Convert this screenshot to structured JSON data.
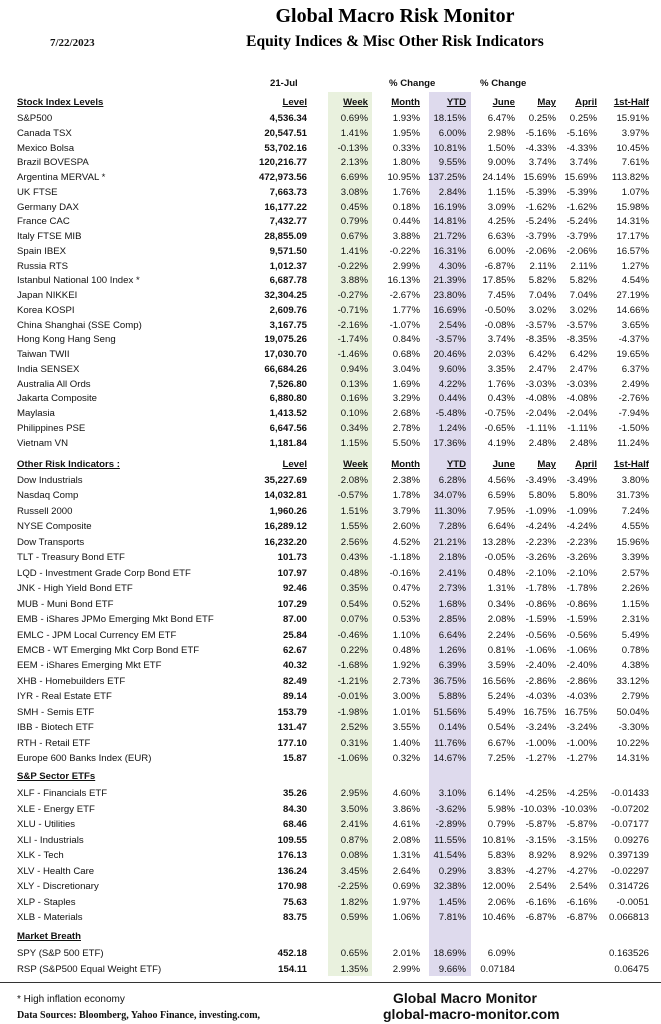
{
  "header": {
    "title": "Global Macro Risk Monitor",
    "subtitle": "Equity Indices & Misc Other Risk Indicators",
    "date": "7/22/2023",
    "as_of": "21-Jul",
    "pct_change_1": "% Change",
    "pct_change_2": "% Change"
  },
  "columns": [
    "Level",
    "Week",
    "Month",
    "YTD",
    "June",
    "May",
    "April",
    "1st-Half"
  ],
  "colors": {
    "week_band": "#e9f1de",
    "ytd_band": "#dedaed"
  },
  "sections": [
    {
      "title": "Stock Index Levels",
      "show_headers": true,
      "rows": [
        [
          "S&P500",
          "4,536.34",
          "0.69%",
          "1.93%",
          "18.15%",
          "6.47%",
          "0.25%",
          "0.25%",
          "15.91%"
        ],
        [
          "Canada TSX",
          "20,547.51",
          "1.41%",
          "1.95%",
          "6.00%",
          "2.98%",
          "-5.16%",
          "-5.16%",
          "3.97%"
        ],
        [
          "Mexico Bolsa",
          "53,702.16",
          "-0.13%",
          "0.33%",
          "10.81%",
          "1.50%",
          "-4.33%",
          "-4.33%",
          "10.45%"
        ],
        [
          "Brazil BOVESPA",
          "120,216.77",
          "2.13%",
          "1.80%",
          "9.55%",
          "9.00%",
          "3.74%",
          "3.74%",
          "7.61%"
        ],
        [
          "Argentina MERVAL *",
          "472,973.56",
          "6.69%",
          "10.95%",
          "137.25%",
          "24.14%",
          "15.69%",
          "15.69%",
          "113.82%"
        ],
        [
          "UK FTSE",
          "7,663.73",
          "3.08%",
          "1.76%",
          "2.84%",
          "1.15%",
          "-5.39%",
          "-5.39%",
          "1.07%"
        ],
        [
          "Germany DAX",
          "16,177.22",
          "0.45%",
          "0.18%",
          "16.19%",
          "3.09%",
          "-1.62%",
          "-1.62%",
          "15.98%"
        ],
        [
          "France CAC",
          "7,432.77",
          "0.79%",
          "0.44%",
          "14.81%",
          "4.25%",
          "-5.24%",
          "-5.24%",
          "14.31%"
        ],
        [
          "Italy FTSE MIB",
          "28,855.09",
          "0.67%",
          "3.88%",
          "21.72%",
          "6.63%",
          "-3.79%",
          "-3.79%",
          "17.17%"
        ],
        [
          "Spain IBEX",
          "9,571.50",
          "1.41%",
          "-0.22%",
          "16.31%",
          "6.00%",
          "-2.06%",
          "-2.06%",
          "16.57%"
        ],
        [
          "Russia RTS",
          "1,012.37",
          "-0.22%",
          "2.99%",
          "4.30%",
          "-6.87%",
          "2.11%",
          "2.11%",
          "1.27%"
        ],
        [
          "Istanbul National 100 Index *",
          "6,687.78",
          "3.88%",
          "16.13%",
          "21.39%",
          "17.85%",
          "5.82%",
          "5.82%",
          "4.54%"
        ],
        [
          "Japan NIKKEI",
          "32,304.25",
          "-0.27%",
          "-2.67%",
          "23.80%",
          "7.45%",
          "7.04%",
          "7.04%",
          "27.19%"
        ],
        [
          "Korea KOSPI",
          "2,609.76",
          "-0.71%",
          "1.77%",
          "16.69%",
          "-0.50%",
          "3.02%",
          "3.02%",
          "14.66%"
        ],
        [
          "China Shanghai (SSE Comp)",
          "3,167.75",
          "-2.16%",
          "-1.07%",
          "2.54%",
          "-0.08%",
          "-3.57%",
          "-3.57%",
          "3.65%"
        ],
        [
          "Hong Kong Hang Seng",
          "19,075.26",
          "-1.74%",
          "0.84%",
          "-3.57%",
          "3.74%",
          "-8.35%",
          "-8.35%",
          "-4.37%"
        ],
        [
          "Taiwan  TWII",
          "17,030.70",
          "-1.46%",
          "0.68%",
          "20.46%",
          "2.03%",
          "6.42%",
          "6.42%",
          "19.65%"
        ],
        [
          "India SENSEX",
          "66,684.26",
          "0.94%",
          "3.04%",
          "9.60%",
          "3.35%",
          "2.47%",
          "2.47%",
          "6.37%"
        ],
        [
          "Australia All Ords",
          "7,526.80",
          "0.13%",
          "1.69%",
          "4.22%",
          "1.76%",
          "-3.03%",
          "-3.03%",
          "2.49%"
        ],
        [
          "Jakarta Composite",
          "6,880.80",
          "0.16%",
          "3.29%",
          "0.44%",
          "0.43%",
          "-4.08%",
          "-4.08%",
          "-2.76%"
        ],
        [
          "Maylasia",
          "1,413.52",
          "0.10%",
          "2.68%",
          "-5.48%",
          "-0.75%",
          "-2.04%",
          "-2.04%",
          "-7.94%"
        ],
        [
          "Philippines PSE",
          "6,647.56",
          "0.34%",
          "2.78%",
          "1.24%",
          "-0.65%",
          "-1.11%",
          "-1.11%",
          "-1.50%"
        ],
        [
          "Vietnam VN",
          "1,181.84",
          "1.15%",
          "5.50%",
          "17.36%",
          "4.19%",
          "2.48%",
          "2.48%",
          "11.24%"
        ]
      ]
    },
    {
      "title": "Other Risk Indicators :",
      "show_headers": true,
      "rows": [
        [
          "Dow Industrials",
          "35,227.69",
          "2.08%",
          "2.38%",
          "6.28%",
          "4.56%",
          "-3.49%",
          "-3.49%",
          "3.80%"
        ],
        [
          "Nasdaq Comp",
          "14,032.81",
          "-0.57%",
          "1.78%",
          "34.07%",
          "6.59%",
          "5.80%",
          "5.80%",
          "31.73%"
        ],
        [
          "Russell 2000",
          "1,960.26",
          "1.51%",
          "3.79%",
          "11.30%",
          "7.95%",
          "-1.09%",
          "-1.09%",
          "7.24%"
        ],
        [
          "NYSE Composite",
          "16,289.12",
          "1.55%",
          "2.60%",
          "7.28%",
          "6.64%",
          "-4.24%",
          "-4.24%",
          "4.55%"
        ],
        [
          "Dow Transports",
          "16,232.20",
          "2.56%",
          "4.52%",
          "21.21%",
          "13.28%",
          "-2.23%",
          "-2.23%",
          "15.96%"
        ],
        [
          "TLT - Treasury Bond ETF",
          "101.73",
          "0.43%",
          "-1.18%",
          "2.18%",
          "-0.05%",
          "-3.26%",
          "-3.26%",
          "3.39%"
        ],
        [
          "LQD - Investment Grade Corp Bond ETF",
          "107.97",
          "0.48%",
          "-0.16%",
          "2.41%",
          "0.48%",
          "-2.10%",
          "-2.10%",
          "2.57%"
        ],
        [
          "JNK - High Yield Bond ETF",
          "92.46",
          "0.35%",
          "0.47%",
          "2.73%",
          "1.31%",
          "-1.78%",
          "-1.78%",
          "2.26%"
        ],
        [
          "MUB - Muni Bond ETF",
          "107.29",
          "0.54%",
          "0.52%",
          "1.68%",
          "0.34%",
          "-0.86%",
          "-0.86%",
          "1.15%"
        ],
        [
          "EMB - iShares JPMo Emerging Mkt Bond ETF",
          "87.00",
          "0.07%",
          "0.53%",
          "2.85%",
          "2.08%",
          "-1.59%",
          "-1.59%",
          "2.31%"
        ],
        [
          "EMLC - JPM Local Currency EM ETF",
          "25.84",
          "-0.46%",
          "1.10%",
          "6.64%",
          "2.24%",
          "-0.56%",
          "-0.56%",
          "5.49%"
        ],
        [
          "EMCB - WT Emerging Mkt Corp Bond ETF",
          "62.67",
          "0.22%",
          "0.48%",
          "1.26%",
          "0.81%",
          "-1.06%",
          "-1.06%",
          "0.78%"
        ],
        [
          "EEM - iShares Emerging Mkt ETF",
          "40.32",
          "-1.68%",
          "1.92%",
          "6.39%",
          "3.59%",
          "-2.40%",
          "-2.40%",
          "4.38%"
        ],
        [
          "XHB - Homebuilders ETF",
          "82.49",
          "-1.21%",
          "2.73%",
          "36.75%",
          "16.56%",
          "-2.86%",
          "-2.86%",
          "33.12%"
        ],
        [
          "IYR - Real Estate ETF",
          "89.14",
          "-0.01%",
          "3.00%",
          "5.88%",
          "5.24%",
          "-4.03%",
          "-4.03%",
          "2.79%"
        ],
        [
          "SMH - Semis ETF",
          "153.79",
          "-1.98%",
          "1.01%",
          "51.56%",
          "5.49%",
          "16.75%",
          "16.75%",
          "50.04%"
        ],
        [
          "IBB - Biotech ETF",
          "131.47",
          "2.52%",
          "3.55%",
          "0.14%",
          "0.54%",
          "-3.24%",
          "-3.24%",
          "-3.30%"
        ],
        [
          "RTH - Retail ETF",
          "177.10",
          "0.31%",
          "1.40%",
          "11.76%",
          "6.67%",
          "-1.00%",
          "-1.00%",
          "10.22%"
        ],
        [
          "Europe 600 Banks Index (EUR)",
          "15.87",
          "-1.06%",
          "0.32%",
          "14.67%",
          "7.25%",
          "-1.27%",
          "-1.27%",
          "14.31%"
        ]
      ]
    },
    {
      "title": "S&P Sector ETFs",
      "show_headers": false,
      "rows": [
        [
          "XLF - Financials ETF",
          "35.26",
          "2.95%",
          "4.60%",
          "3.10%",
          "6.14%",
          "-4.25%",
          "-4.25%",
          "-0.01433"
        ],
        [
          "XLE - Energy ETF",
          "84.30",
          "3.50%",
          "3.86%",
          "-3.62%",
          "5.98%",
          "-10.03%",
          "-10.03%",
          "-0.07202"
        ],
        [
          "XLU - Utilities",
          "68.46",
          "2.41%",
          "4.61%",
          "-2.89%",
          "0.79%",
          "-5.87%",
          "-5.87%",
          "-0.07177"
        ],
        [
          "XLI - Industrials",
          "109.55",
          "0.87%",
          "2.08%",
          "11.55%",
          "10.81%",
          "-3.15%",
          "-3.15%",
          "0.09276"
        ],
        [
          "XLK - Tech",
          "176.13",
          "0.08%",
          "1.31%",
          "41.54%",
          "5.83%",
          "8.92%",
          "8.92%",
          "0.397139"
        ],
        [
          "XLV - Health Care",
          "136.24",
          "3.45%",
          "2.64%",
          "0.29%",
          "3.83%",
          "-4.27%",
          "-4.27%",
          "-0.02297"
        ],
        [
          "XLY - Discretionary",
          "170.98",
          "-2.25%",
          "0.69%",
          "32.38%",
          "12.00%",
          "2.54%",
          "2.54%",
          "0.314726"
        ],
        [
          "XLP - Staples",
          "75.63",
          "1.82%",
          "1.97%",
          "1.45%",
          "2.06%",
          "-6.16%",
          "-6.16%",
          "-0.0051"
        ],
        [
          "XLB - Materials",
          "83.75",
          "0.59%",
          "1.06%",
          "7.81%",
          "10.46%",
          "-6.87%",
          "-6.87%",
          "0.066813"
        ]
      ]
    },
    {
      "title": "Market Breath",
      "show_headers": false,
      "rows": [
        [
          "SPY (S&P 500 ETF)",
          "452.18",
          "0.65%",
          "2.01%",
          "18.69%",
          "6.09%",
          "",
          "",
          "0.163526"
        ],
        [
          "RSP (S&P500 Equal Weight ETF)",
          "154.11",
          "1.35%",
          "2.99%",
          "9.66%",
          "0.07184",
          "",
          "",
          "0.06475"
        ]
      ]
    }
  ],
  "footer": {
    "note": "* High inflation economy",
    "sources": "Data Sources:  Bloomberg,  Yahoo Finance, investing.com,",
    "brand": "Global Macro Monitor",
    "website": "global-macro-monitor.com"
  }
}
